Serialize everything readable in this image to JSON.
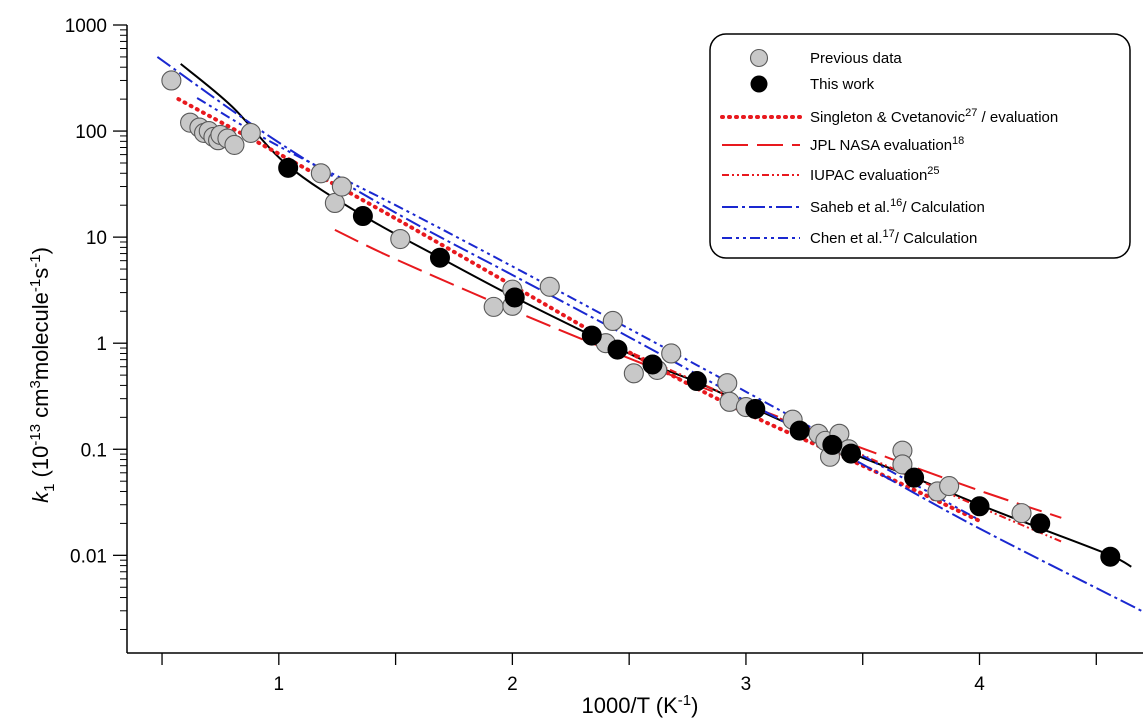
{
  "chart_data": {
    "type": "scatter",
    "title": "",
    "xlabel": "1000/T (K",
    "xlabel_sup": "-1",
    "xlabel_tail": ")",
    "ylabel": {
      "italic": "k",
      "sub": "1",
      "pre": " (10",
      "sup1": "-13",
      "mid1": " cm",
      "sup2": "3",
      "mid2": "molecule",
      "sup3": "-1",
      "mid3": "s",
      "sup4": "-1",
      "tail": ")"
    },
    "xlim": [
      0.35,
      4.7
    ],
    "ylim": [
      0.0012,
      1000
    ],
    "yscale": "log",
    "x_ticks": [
      1,
      2,
      3,
      4
    ],
    "x_tick_labels": [
      "1",
      "2",
      "3",
      "4"
    ],
    "y_ticks": [
      0.01,
      0.1,
      1,
      10,
      100,
      1000
    ],
    "y_tick_labels": [
      "0.01",
      "0.1",
      "1",
      "10",
      "100",
      "1000"
    ],
    "grid": false,
    "legend_position": "top-right",
    "legend": [
      {
        "label": "Previous data",
        "marker": "circle-gray"
      },
      {
        "label": "This work",
        "marker": "circle-black"
      },
      {
        "label": "Singleton & Cvetanovic",
        "sup": "27",
        "tail": " / evaluation",
        "style": "dotted-red"
      },
      {
        "label": "JPL NASA evaluation",
        "sup": "18",
        "tail": "",
        "style": "longdash-red"
      },
      {
        "label": "IUPAC evaluation",
        "sup": "25",
        "tail": "",
        "style": "dashdot-red"
      },
      {
        "label": "Saheb et al.",
        "sup": "16",
        "tail": "/ Calculation",
        "style": "dashdot-blue"
      },
      {
        "label": "Chen et al.",
        "sup": "17",
        "tail": "/ Calculation",
        "style": "dashdotdot-blue"
      }
    ],
    "colors": {
      "previous_fill": "#c8c8c8",
      "this_work": "#000000",
      "red": "#e8191e",
      "blue": "#1a28d0",
      "fit": "#000000"
    },
    "series": [
      {
        "name": "Previous data",
        "points": [
          [
            0.54,
            300
          ],
          [
            0.62,
            120
          ],
          [
            0.66,
            108
          ],
          [
            0.68,
            96
          ],
          [
            0.7,
            100
          ],
          [
            0.72,
            88
          ],
          [
            0.74,
            82
          ],
          [
            0.75,
            92
          ],
          [
            0.78,
            85
          ],
          [
            0.81,
            74
          ],
          [
            0.88,
            96
          ],
          [
            1.18,
            40
          ],
          [
            1.24,
            21
          ],
          [
            1.27,
            30
          ],
          [
            1.52,
            9.6
          ],
          [
            1.92,
            2.2
          ],
          [
            2.0,
            2.25
          ],
          [
            2.0,
            3.2
          ],
          [
            2.16,
            3.4
          ],
          [
            2.4,
            1.0
          ],
          [
            2.43,
            1.62
          ],
          [
            2.52,
            0.52
          ],
          [
            2.62,
            0.56
          ],
          [
            2.68,
            0.8
          ],
          [
            2.92,
            0.42
          ],
          [
            2.93,
            0.28
          ],
          [
            3.0,
            0.25
          ],
          [
            3.2,
            0.19
          ],
          [
            3.31,
            0.14
          ],
          [
            3.34,
            0.12
          ],
          [
            3.36,
            0.085
          ],
          [
            3.4,
            0.14
          ],
          [
            3.44,
            0.1
          ],
          [
            3.67,
            0.097
          ],
          [
            3.67,
            0.072
          ],
          [
            3.82,
            0.04
          ],
          [
            3.87,
            0.045
          ],
          [
            4.18,
            0.025
          ]
        ]
      },
      {
        "name": "This work",
        "points": [
          [
            1.04,
            45
          ],
          [
            1.36,
            15.8
          ],
          [
            1.69,
            6.4
          ],
          [
            2.01,
            2.7
          ],
          [
            2.34,
            1.18
          ],
          [
            2.45,
            0.87
          ],
          [
            2.6,
            0.63
          ],
          [
            2.79,
            0.44
          ],
          [
            3.04,
            0.24
          ],
          [
            3.23,
            0.15
          ],
          [
            3.37,
            0.11
          ],
          [
            3.45,
            0.091
          ],
          [
            3.72,
            0.054
          ],
          [
            4.0,
            0.029
          ],
          [
            4.26,
            0.02
          ],
          [
            4.56,
            0.0097
          ]
        ]
      }
    ],
    "curves": [
      {
        "name": "fit",
        "points": [
          [
            0.58,
            430
          ],
          [
            0.8,
            170
          ],
          [
            1.04,
            47
          ],
          [
            1.36,
            16
          ],
          [
            1.69,
            6.4
          ],
          [
            2.01,
            2.7
          ],
          [
            2.34,
            1.18
          ],
          [
            2.6,
            0.63
          ],
          [
            2.79,
            0.43
          ],
          [
            3.04,
            0.24
          ],
          [
            3.23,
            0.155
          ],
          [
            3.45,
            0.092
          ],
          [
            3.72,
            0.054
          ],
          [
            4.0,
            0.03
          ],
          [
            4.26,
            0.018
          ],
          [
            4.56,
            0.01
          ],
          [
            4.65,
            0.0078
          ]
        ]
      },
      {
        "name": "Singleton & Cvetanovic / evaluation",
        "points": [
          [
            0.57,
            200
          ],
          [
            1.0,
            61
          ],
          [
            1.5,
            15
          ],
          [
            2.0,
            3.5
          ],
          [
            2.5,
            0.82
          ],
          [
            3.0,
            0.22
          ],
          [
            3.5,
            0.07
          ],
          [
            4.0,
            0.0211
          ]
        ]
      },
      {
        "name": "JPL NASA evaluation",
        "points": [
          [
            1.24,
            11.7
          ],
          [
            1.5,
            6.2
          ],
          [
            2.0,
            2.05
          ],
          [
            2.5,
            0.72
          ],
          [
            3.0,
            0.265
          ],
          [
            3.5,
            0.102
          ],
          [
            4.0,
            0.0408
          ],
          [
            4.35,
            0.0226
          ]
        ]
      },
      {
        "name": "IUPAC evaluation",
        "points": [
          [
            2.36,
            1.11
          ],
          [
            2.5,
            0.83
          ],
          [
            3.0,
            0.27
          ],
          [
            3.5,
            0.088
          ],
          [
            4.0,
            0.0286
          ],
          [
            4.35,
            0.0135
          ]
        ]
      },
      {
        "name": "Saheb et al. / Calculation",
        "points": [
          [
            0.48,
            500
          ],
          [
            1.0,
            78
          ],
          [
            1.5,
            17
          ],
          [
            2.0,
            4.4
          ],
          [
            2.5,
            1.14
          ],
          [
            3.0,
            0.284
          ],
          [
            3.5,
            0.072
          ],
          [
            4.0,
            0.0179
          ],
          [
            4.7,
            0.00295
          ]
        ]
      },
      {
        "name": "Chen et al. / Calculation",
        "points": [
          [
            0.65,
            205
          ],
          [
            1.0,
            72
          ],
          [
            1.5,
            20
          ],
          [
            2.0,
            5.3
          ],
          [
            2.5,
            1.37
          ],
          [
            3.0,
            0.349
          ],
          [
            3.5,
            0.0868
          ],
          [
            4.0,
            0.0215
          ]
        ]
      }
    ]
  }
}
